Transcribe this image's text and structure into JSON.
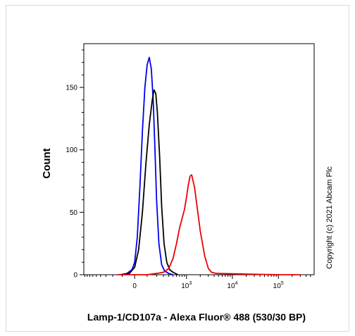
{
  "chart_data": {
    "type": "line",
    "title": "",
    "xlabel": "Lamp-1/CD107a - Alexa Fluor® 488 (530/30 BP)",
    "ylabel": "Count",
    "x_scale": "biexponential",
    "ylim": [
      0,
      185
    ],
    "y_ticks": [
      "0",
      "50",
      "100",
      "150"
    ],
    "x_ticks": [
      {
        "base": "0",
        "exp": ""
      },
      {
        "base": "10",
        "exp": "3"
      },
      {
        "base": "10",
        "exp": "4"
      },
      {
        "base": "10",
        "exp": "5"
      }
    ],
    "grid": false,
    "legend": "none",
    "annotations": [
      "Copyright (c) 2021 Abcam Plc"
    ],
    "series": [
      {
        "color": "#0000ee",
        "x": [
          -120,
          -60,
          -20,
          0,
          20,
          40,
          60,
          80,
          100,
          120,
          140,
          160,
          180,
          200,
          230,
          270,
          320,
          400,
          500
        ],
        "y": [
          0,
          1,
          4,
          10,
          30,
          70,
          115,
          150,
          168,
          174,
          165,
          140,
          100,
          60,
          25,
          8,
          3,
          1,
          0
        ]
      },
      {
        "color": "#000000",
        "x": [
          -100,
          -40,
          0,
          30,
          60,
          90,
          120,
          150,
          170,
          190,
          210,
          240,
          270,
          310,
          360,
          420,
          500,
          650
        ],
        "y": [
          0,
          1,
          6,
          20,
          50,
          90,
          120,
          140,
          148,
          145,
          130,
          95,
          55,
          25,
          10,
          4,
          2,
          0
        ]
      },
      {
        "color": "#ee0000",
        "x": [
          -150,
          100,
          200,
          300,
          400,
          500,
          600,
          700,
          800,
          900,
          1000,
          1100,
          1200,
          1300,
          1500,
          1700,
          2000,
          2500,
          3000,
          3500,
          4500,
          100000,
          300000
        ],
        "y": [
          0,
          0,
          1,
          2,
          5,
          13,
          25,
          37,
          45,
          52,
          62,
          72,
          79,
          80,
          70,
          55,
          35,
          15,
          5,
          2,
          1,
          0,
          0
        ]
      }
    ]
  }
}
